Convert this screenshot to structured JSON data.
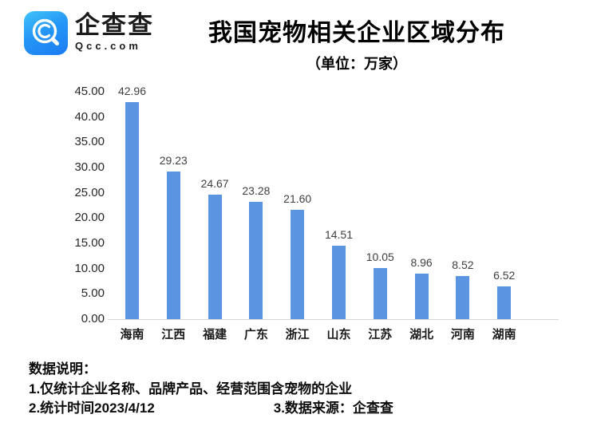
{
  "header": {
    "logo": {
      "brand": "企查查",
      "domain": "Qcc.com"
    },
    "title": "我国宠物相关企业区域分布",
    "subtitle": "（单位：万家）"
  },
  "chart_data": {
    "type": "bar",
    "title": "我国宠物相关企业区域分布",
    "subtitle": "（单位：万家）",
    "unit": "万家",
    "categories": [
      "海南",
      "江西",
      "福建",
      "广东",
      "浙江",
      "山东",
      "江苏",
      "湖北",
      "河南",
      "湖南"
    ],
    "values": [
      42.96,
      29.23,
      24.67,
      23.28,
      21.6,
      14.51,
      10.05,
      8.96,
      8.52,
      6.52
    ],
    "value_labels": [
      "42.96",
      "29.23",
      "24.67",
      "23.28",
      "21.60",
      "14.51",
      "10.05",
      "8.96",
      "8.52",
      "6.52"
    ],
    "ytick_labels": [
      "0.00",
      "5.00",
      "10.00",
      "15.00",
      "20.00",
      "25.00",
      "30.00",
      "35.00",
      "40.00",
      "45.00"
    ],
    "ylim": [
      0,
      45
    ],
    "xlabel": "",
    "ylabel": "",
    "grid": false,
    "legend": false,
    "bar_color": "#5B94E0",
    "axis_color": "#d7d7d7"
  },
  "notes": {
    "title": "数据说明：",
    "line1": "1.仅统计企业名称、品牌产品、经营范围含宠物的企业",
    "line2_left": "2.统计时间2023/4/12",
    "line2_right": "3.数据来源：企查查"
  }
}
